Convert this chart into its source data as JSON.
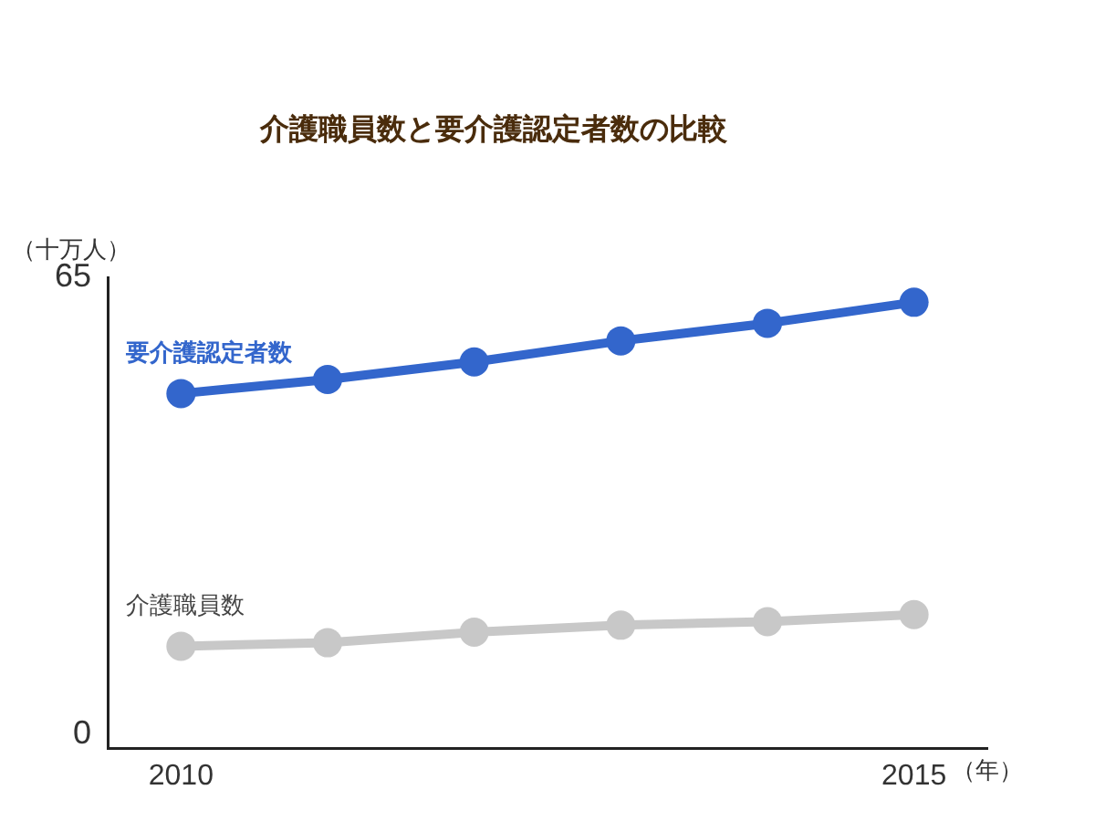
{
  "chart_data": {
    "type": "line",
    "title": "介護職員数と要介護認定者数の比較",
    "ylabel": "（十万人）",
    "xlabel": "（年）",
    "categories": [
      "2010",
      null,
      null,
      null,
      null,
      "2015"
    ],
    "series": [
      {
        "name": "要介護認定者数",
        "color": "#3366cc",
        "values": [
          48.5,
          50.5,
          53,
          56,
          58.5,
          61.5
        ]
      },
      {
        "name": "介護職員数",
        "color": "#c8c8c8",
        "values": [
          12.5,
          13,
          14.5,
          15.5,
          16,
          17
        ]
      }
    ],
    "ylim": [
      -2,
      65
    ],
    "yticks": [
      0,
      65
    ],
    "grid": false,
    "legend": false,
    "marker": "circle",
    "line_style": "solid"
  }
}
